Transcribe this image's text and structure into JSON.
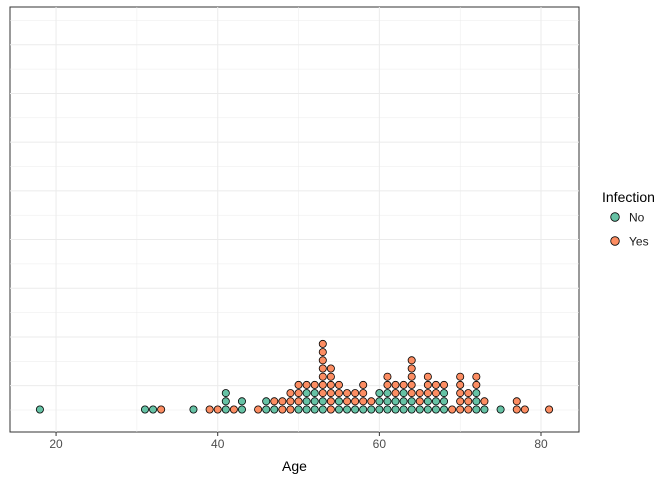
{
  "chart_data": {
    "type": "scatter",
    "subtype": "dotplot",
    "title": "",
    "xlabel": "Age",
    "ylabel": "",
    "xlim": [
      14.3,
      84.7
    ],
    "xticks": [
      20,
      40,
      60,
      80
    ],
    "grid": true,
    "legend": {
      "title": "Infection",
      "position": "right",
      "entries": [
        {
          "label": "No",
          "color": "#66c2a5"
        },
        {
          "label": "Yes",
          "color": "#fc8d62"
        }
      ]
    },
    "series": [
      {
        "name": "No",
        "color": "#66c2a5",
        "x": [
          18,
          31,
          32,
          37,
          41,
          41,
          41,
          43,
          43,
          46,
          46,
          47,
          50,
          51,
          51,
          51,
          52,
          52,
          52,
          53,
          53,
          55,
          55,
          56,
          57,
          58,
          59,
          60,
          60,
          60,
          61,
          61,
          61,
          62,
          62,
          63,
          63,
          63,
          64,
          64,
          65,
          66,
          66,
          67,
          67,
          68,
          68,
          68,
          72,
          72,
          72,
          73,
          75
        ]
      },
      {
        "name": "Yes",
        "color": "#fc8d62",
        "x": [
          33,
          39,
          40,
          42,
          45,
          47,
          48,
          48,
          49,
          49,
          49,
          50,
          50,
          50,
          51,
          52,
          53,
          53,
          53,
          53,
          53,
          53,
          53,
          54,
          54,
          54,
          54,
          54,
          54,
          55,
          55,
          56,
          56,
          57,
          57,
          58,
          58,
          58,
          59,
          61,
          61,
          62,
          62,
          63,
          64,
          64,
          64,
          64,
          64,
          65,
          65,
          66,
          66,
          66,
          67,
          67,
          68,
          69,
          70,
          70,
          70,
          70,
          70,
          71,
          71,
          71,
          72,
          72,
          73,
          77,
          77,
          78,
          81
        ]
      }
    ]
  }
}
